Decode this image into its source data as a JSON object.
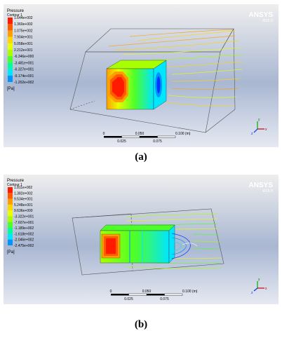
{
  "brand": {
    "name": "ANSYS",
    "version": "R15.0"
  },
  "panels": [
    {
      "caption": "(a)",
      "legend": {
        "title": "Pressure",
        "subtitle": "Contour 1",
        "unit": "[Pa]",
        "values": [
          "1.644e+002",
          "1.360e+002",
          "1.075e+002",
          "7.904e+001",
          "5.058e+001",
          "2.212e+001",
          "-6.346e+000",
          "-3.481e+001",
          "-6.327e+001",
          "-9.174e+001",
          "-1.202e+002"
        ],
        "colors": [
          "#ff1a00",
          "#ff5c00",
          "#ff9e00",
          "#ffd600",
          "#e8ff00",
          "#a8ff00",
          "#4dff2a",
          "#00ff9a",
          "#00e6ff",
          "#0094ff",
          "#0036ff"
        ]
      },
      "scale": {
        "top_labels": [
          "0",
          "0.050",
          "0.100 (m)"
        ],
        "bottom_labels": [
          "0.025",
          "0.075"
        ]
      }
    },
    {
      "caption": "(b)",
      "legend": {
        "title": "Pressure",
        "subtitle": "Contour 1",
        "unit": "[Pa]",
        "values": [
          "1.811e+002",
          "1.382e+002",
          "9.534e+001",
          "5.248e+001",
          "9.636e+000",
          "-3.322e+001",
          "-7.607e+001",
          "-1.189e+002",
          "-1.618e+002",
          "-2.046e+002",
          "-2.475e+002"
        ],
        "colors": [
          "#ff1a00",
          "#ff5c00",
          "#ff9e00",
          "#ffd600",
          "#e8ff00",
          "#a8ff00",
          "#4dff2a",
          "#00ff9a",
          "#00e6ff",
          "#0094ff",
          "#0036ff"
        ]
      },
      "scale": {
        "top_labels": [
          "0",
          "0.050",
          "0.100 (m)"
        ],
        "bottom_labels": [
          "0.025",
          "0.075"
        ]
      }
    }
  ],
  "axes": {
    "x": "x",
    "y": "y",
    "z": "z"
  }
}
